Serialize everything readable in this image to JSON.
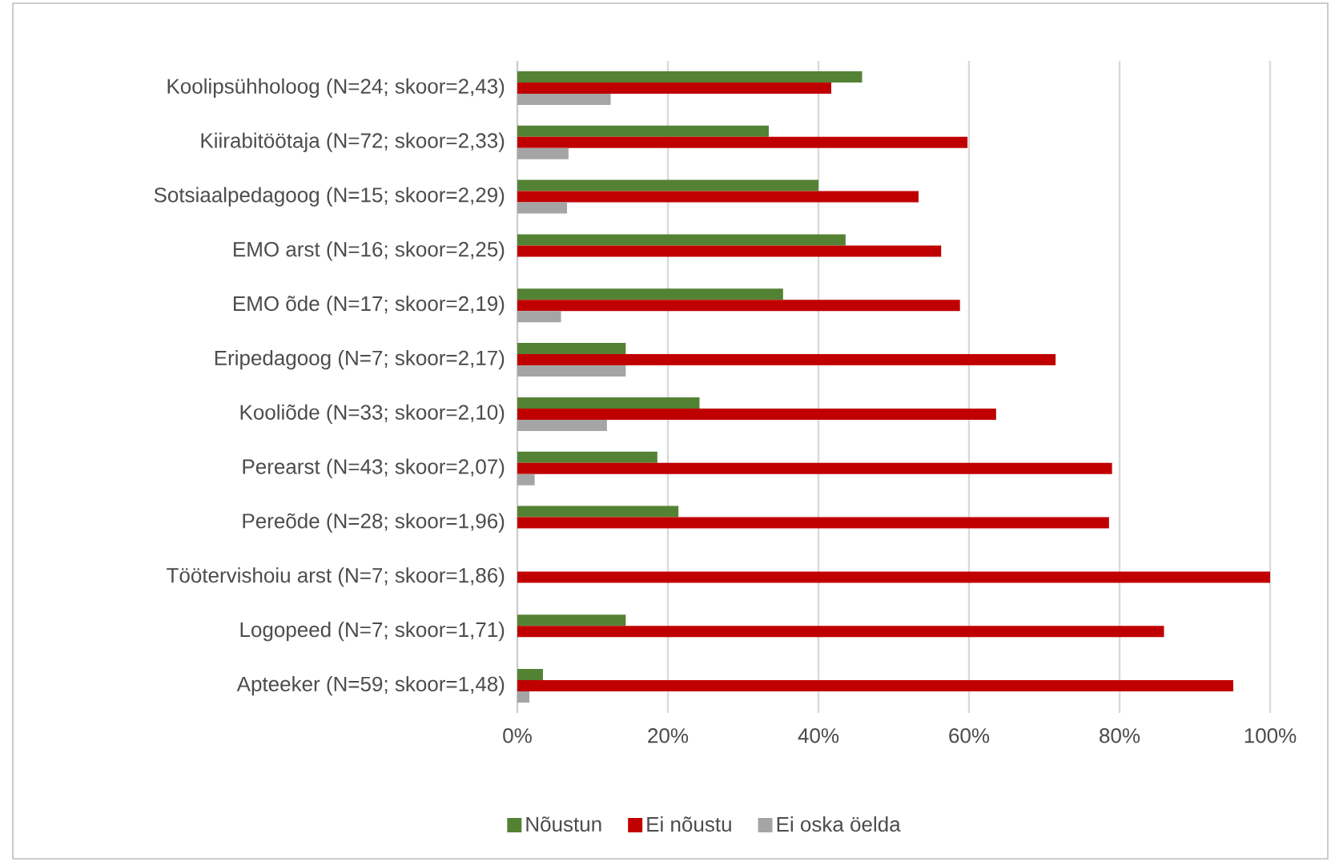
{
  "chart_data": {
    "type": "bar",
    "orientation": "horizontal",
    "categories": [
      "Koolipsühholoog (N=24; skoor=2,43)",
      "Kiirabitöötaja (N=72; skoor=2,33)",
      "Sotsiaalpedagoog (N=15; skoor=2,29)",
      "EMO arst (N=16; skoor=2,25)",
      "EMO õde (N=17; skoor=2,19)",
      "Eripedagoog (N=7; skoor=2,17)",
      "Kooliõde (N=33; skoor=2,10)",
      "Perearst (N=43; skoor=2,07)",
      "Pereõde (N=28; skoor=1,96)",
      "Töötervishoiu arst (N=7; skoor=1,86)",
      "Logopeed (N=7; skoor=1,71)",
      "Apteeker (N=59; skoor=1,48)"
    ],
    "series": [
      {
        "name": "Nõustun",
        "color": "#548235",
        "values": [
          45.8,
          33.4,
          40.0,
          43.6,
          35.3,
          14.4,
          24.2,
          18.6,
          21.4,
          0,
          14.4,
          3.4
        ]
      },
      {
        "name": "Ei nõustu",
        "color": "#c00000",
        "values": [
          41.7,
          59.8,
          53.3,
          56.3,
          58.8,
          71.5,
          63.6,
          79.0,
          78.6,
          100,
          85.9,
          95.1
        ]
      },
      {
        "name": "Ei oska öelda",
        "color": "#a5a5a5",
        "values": [
          12.4,
          6.8,
          6.6,
          0,
          5.8,
          14.4,
          11.9,
          2.3,
          0,
          0,
          0,
          1.6
        ]
      }
    ],
    "xlim": [
      0,
      100
    ],
    "xticks": [
      {
        "value": 0,
        "label": "0%"
      },
      {
        "value": 20,
        "label": "20%"
      },
      {
        "value": 40,
        "label": "40%"
      },
      {
        "value": 60,
        "label": "60%"
      },
      {
        "value": 80,
        "label": "80%"
      },
      {
        "value": 100,
        "label": "100%"
      }
    ],
    "grid": "x",
    "legend": "bottom"
  }
}
